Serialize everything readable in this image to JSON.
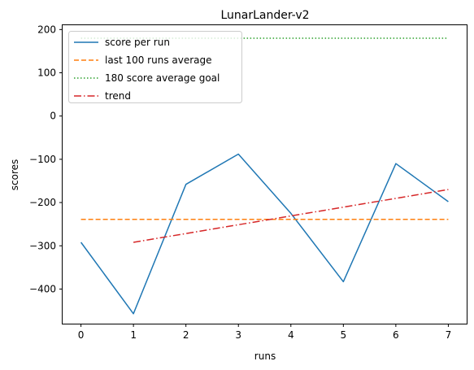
{
  "chart_data": {
    "type": "line",
    "title": "LunarLander-v2",
    "xlabel": "runs",
    "ylabel": "scores",
    "xlim": [
      -0.35,
      7.35
    ],
    "ylim": [
      -480,
      210
    ],
    "xticks": [
      0,
      1,
      2,
      3,
      4,
      5,
      6,
      7
    ],
    "yticks": [
      -400,
      -300,
      -200,
      -100,
      0,
      100,
      200
    ],
    "grid": false,
    "legend_position": "top-left",
    "series": [
      {
        "name": "score per run",
        "color": "#1f77b4",
        "style": "solid",
        "x": [
          0,
          1,
          2,
          3,
          4,
          5,
          6,
          7
        ],
        "y": [
          -292,
          -457,
          -158,
          -88,
          -225,
          -383,
          -110,
          -198
        ]
      },
      {
        "name": "last 100 runs average",
        "color": "#ff7f0e",
        "style": "dashed",
        "x": [
          0,
          7
        ],
        "y": [
          -239,
          -239
        ]
      },
      {
        "name": "180 score average goal",
        "color": "#2ca02c",
        "style": "dotted",
        "x": [
          0,
          7
        ],
        "y": [
          180,
          180
        ]
      },
      {
        "name": "trend",
        "color": "#d62728",
        "style": "dashdot",
        "x": [
          1,
          7
        ],
        "y": [
          -292,
          -170
        ]
      }
    ]
  }
}
